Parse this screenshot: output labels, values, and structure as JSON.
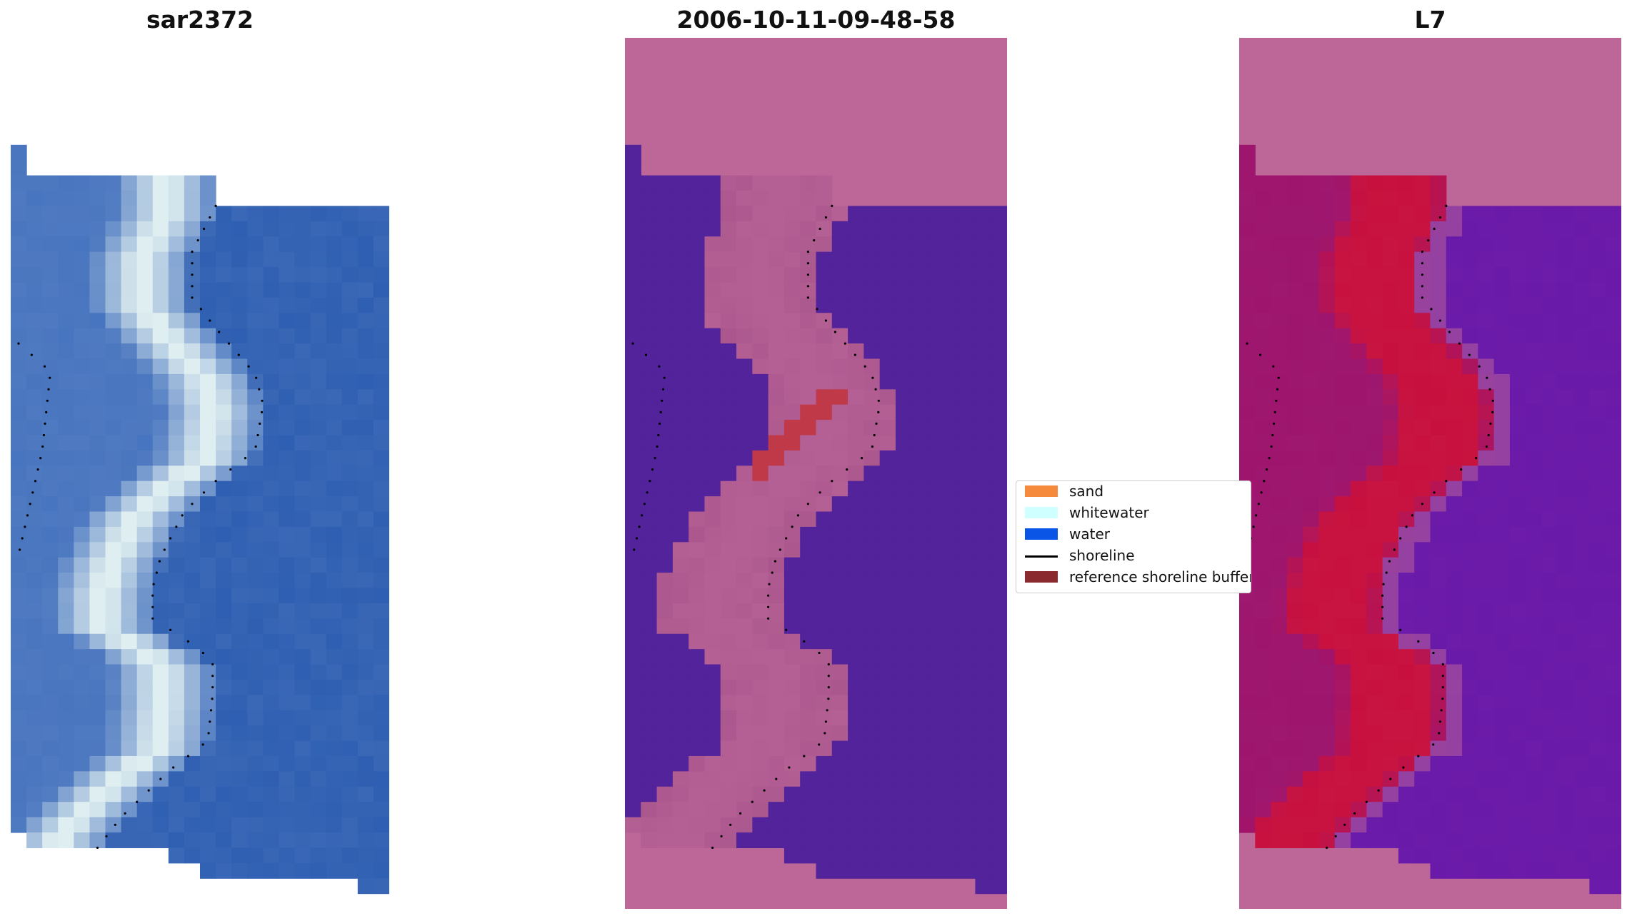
{
  "panels": [
    {
      "title": "sar2372",
      "style": "rgb"
    },
    {
      "title": "2006-10-11-09-48-58",
      "style": "classified"
    },
    {
      "title": "L7",
      "style": "index"
    }
  ],
  "legend": {
    "items": [
      {
        "label": "sand",
        "color": "#f58a3c",
        "kind": "patch"
      },
      {
        "label": "whitewater",
        "color": "#cfffff",
        "kind": "patch"
      },
      {
        "label": "water",
        "color": "#0a55e6",
        "kind": "patch"
      },
      {
        "label": "shoreline",
        "color": "#000000",
        "kind": "line"
      },
      {
        "label": "reference shoreline buffer",
        "color": "#8a2a2e",
        "kind": "patch"
      }
    ]
  },
  "colors": {
    "buffer_fill": "#bd6799",
    "water_class": "#52239a",
    "whitewater_class": "#c03948",
    "rgb_water": "#2f5fb2",
    "rgb_foam": "#dfeef0",
    "index_high": "#c8103e",
    "index_low": "#6a1aa8"
  }
}
